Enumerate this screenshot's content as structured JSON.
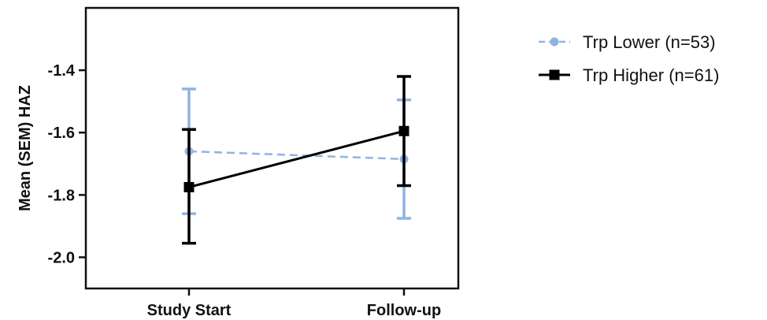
{
  "chart_data": {
    "type": "line",
    "title": "",
    "xlabel": "",
    "ylabel": "Mean (SEM) HAZ",
    "categories": [
      "Study Start",
      "Follow-up"
    ],
    "ylim": [
      -2.1,
      -1.2
    ],
    "yticks": [
      -1.4,
      -1.6,
      -1.8,
      -2.0
    ],
    "ytick_labels": [
      "-1.4",
      "-1.6",
      "-1.8",
      "-2.0"
    ],
    "grid": false,
    "legend_position": "right",
    "series": [
      {
        "name": "Trp Lower (n=53)",
        "values": [
          -1.66,
          -1.685
        ],
        "err_low": [
          -1.86,
          -1.875
        ],
        "err_high": [
          -1.46,
          -1.495
        ],
        "color": "#8fb4e3",
        "line_style": "dashed",
        "marker": "circle"
      },
      {
        "name": "Trp Higher (n=61)",
        "values": [
          -1.775,
          -1.595
        ],
        "err_low": [
          -1.955,
          -1.77
        ],
        "err_high": [
          -1.59,
          -1.42
        ],
        "color": "#000000",
        "line_style": "solid",
        "marker": "square"
      }
    ]
  }
}
